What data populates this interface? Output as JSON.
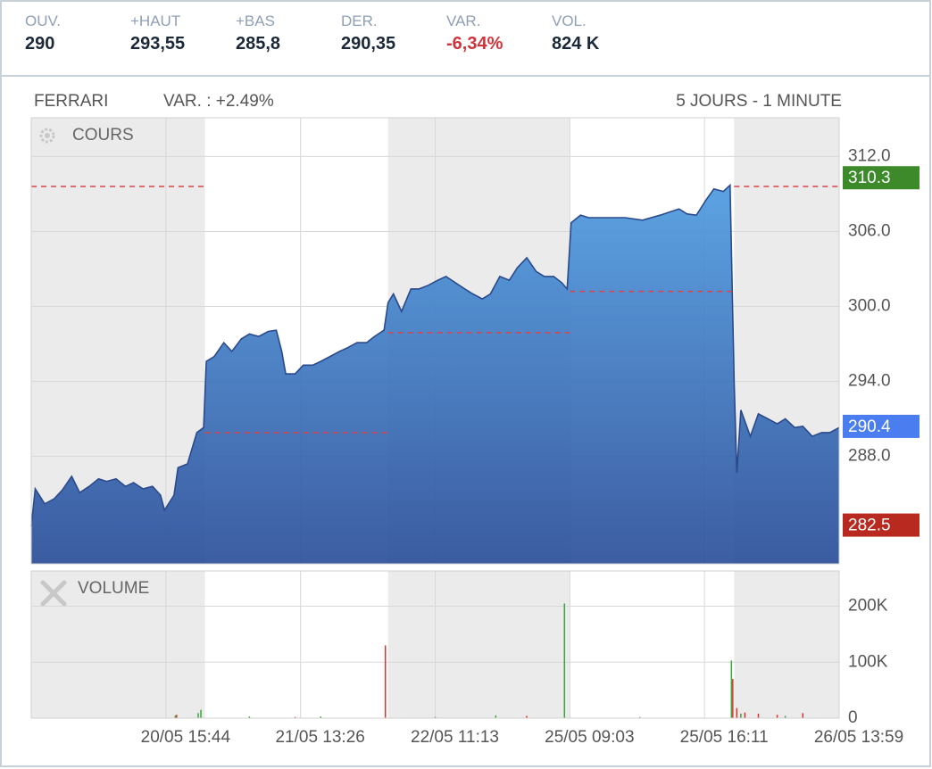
{
  "header": {
    "stats": [
      {
        "label": "OUV.",
        "value": "290"
      },
      {
        "label": "+HAUT",
        "value": "293,55"
      },
      {
        "label": "+BAS",
        "value": "285,8"
      },
      {
        "label": "DER.",
        "value": "290,35"
      },
      {
        "label": "VAR.",
        "value": "-6,34%",
        "color": "#d0343a"
      },
      {
        "label": "VOL.",
        "value": "824 K"
      }
    ]
  },
  "chart_data": [
    {
      "type": "area",
      "name": "FERRARI",
      "change": "VAR. : +2.49%",
      "period": "5 JOURS - 1 MINUTE",
      "title": "COURS",
      "xlim": [
        0,
        600
      ],
      "ylim": [
        279.4,
        315.1
      ],
      "yticks": [
        {
          "value": 288,
          "label": "288.0"
        },
        {
          "value": 294,
          "label": "294.0"
        },
        {
          "value": 300,
          "label": "300.0"
        },
        {
          "value": 306,
          "label": "306.0"
        },
        {
          "value": 312,
          "label": "312.0"
        }
      ],
      "grid": true,
      "line_color": "#2b4a8c",
      "shaded_ranges": [
        [
          0,
          129
        ],
        [
          265,
          400
        ],
        [
          522,
          600
        ]
      ],
      "reference_lines": [
        {
          "x": [
            0,
            129
          ],
          "value": 309.6
        },
        {
          "x": [
            129,
            265
          ],
          "value": 289.9
        },
        {
          "x": [
            265,
            400
          ],
          "value": 297.9
        },
        {
          "x": [
            400,
            522
          ],
          "value": 301.2
        },
        {
          "x": [
            522,
            600
          ],
          "value": 309.6
        }
      ],
      "markers": [
        {
          "value": 310.3,
          "color": "#3c8a2a"
        },
        {
          "value": 290.4,
          "color": "#4a7ef0"
        },
        {
          "value": 282.5,
          "color": "#b8291f"
        }
      ],
      "x": [
        0,
        3,
        10,
        17,
        23,
        30,
        36,
        43,
        50,
        56,
        63,
        70,
        76,
        83,
        90,
        96,
        99,
        106,
        109,
        116,
        123,
        128,
        130,
        136,
        143,
        149,
        156,
        162,
        169,
        176,
        182,
        186,
        189,
        196,
        202,
        209,
        215,
        222,
        229,
        235,
        242,
        249,
        255,
        262,
        265,
        269,
        275,
        282,
        288,
        295,
        302,
        308,
        315,
        322,
        328,
        335,
        341,
        348,
        355,
        361,
        368,
        375,
        381,
        388,
        394,
        398,
        401,
        408,
        414,
        428,
        441,
        454,
        467,
        481,
        487,
        494,
        501,
        507,
        514,
        519,
        522,
        524,
        527,
        534,
        540,
        547,
        554,
        560,
        567,
        573,
        580,
        587,
        593,
        600
      ],
      "values": [
        282.4,
        285.4,
        284.2,
        284.6,
        285.3,
        286.4,
        285.1,
        285.6,
        286.2,
        286,
        286.2,
        285.6,
        285.9,
        285.4,
        285.6,
        284.9,
        283.7,
        284.9,
        287.1,
        287.4,
        289.9,
        290.3,
        295.6,
        296,
        297.1,
        296.4,
        297.4,
        297.8,
        297.6,
        298,
        298.1,
        296.4,
        294.6,
        294.6,
        295.3,
        295.3,
        295.6,
        296,
        296.4,
        296.7,
        297.1,
        297.1,
        297.6,
        298.1,
        300.3,
        301,
        299.6,
        301.4,
        301.4,
        301.7,
        302.1,
        302.4,
        301.9,
        301.4,
        301,
        300.6,
        301,
        302.4,
        302.1,
        303.1,
        303.9,
        302.8,
        302.4,
        302.4,
        301.9,
        301.4,
        306.7,
        307.3,
        307.1,
        307.1,
        307.1,
        306.9,
        307.3,
        307.8,
        307.4,
        307.3,
        308.5,
        309.4,
        309.2,
        309.7,
        293.9,
        286.7,
        291.7,
        289.6,
        291.4,
        291,
        290.6,
        291,
        290.3,
        290.4,
        289.6,
        289.9,
        289.9,
        290.3
      ]
    },
    {
      "type": "bar",
      "title": "VOLUME",
      "xlim": [
        0,
        600
      ],
      "xticks": [
        {
          "value": 100,
          "label": "20/05 15:44"
        },
        {
          "value": 200,
          "label": "21/05 13:26"
        },
        {
          "value": 300,
          "label": "22/05 11:13"
        },
        {
          "value": 400,
          "label": "25/05 09:03"
        },
        {
          "value": 500,
          "label": "25/05 16:11"
        },
        {
          "value": 600,
          "label": "26/05 13:59"
        }
      ],
      "ylim": [
        0,
        263000
      ],
      "yticks": [
        0,
        {
          "value": 100000,
          "label": "100K"
        },
        {
          "value": 200000,
          "label": "200K"
        }
      ],
      "grid": true,
      "series": [
        {
          "color": "#3aa53a",
          "x": [
            107,
            124,
            126,
            162,
            215,
            300,
            345,
            396,
            452,
            520,
            527,
            560
          ],
          "values": [
            5000,
            9000,
            15000,
            3000,
            3000,
            2000,
            5000,
            205000,
            2000,
            103000,
            8000,
            4000
          ]
        },
        {
          "color": "#d9342b",
          "x": [
            108,
            196,
            263,
            368,
            521,
            524,
            530,
            540,
            554,
            573
          ],
          "values": [
            6000,
            2000,
            130000,
            4000,
            70000,
            18000,
            10000,
            8000,
            6000,
            9000
          ]
        }
      ]
    }
  ]
}
